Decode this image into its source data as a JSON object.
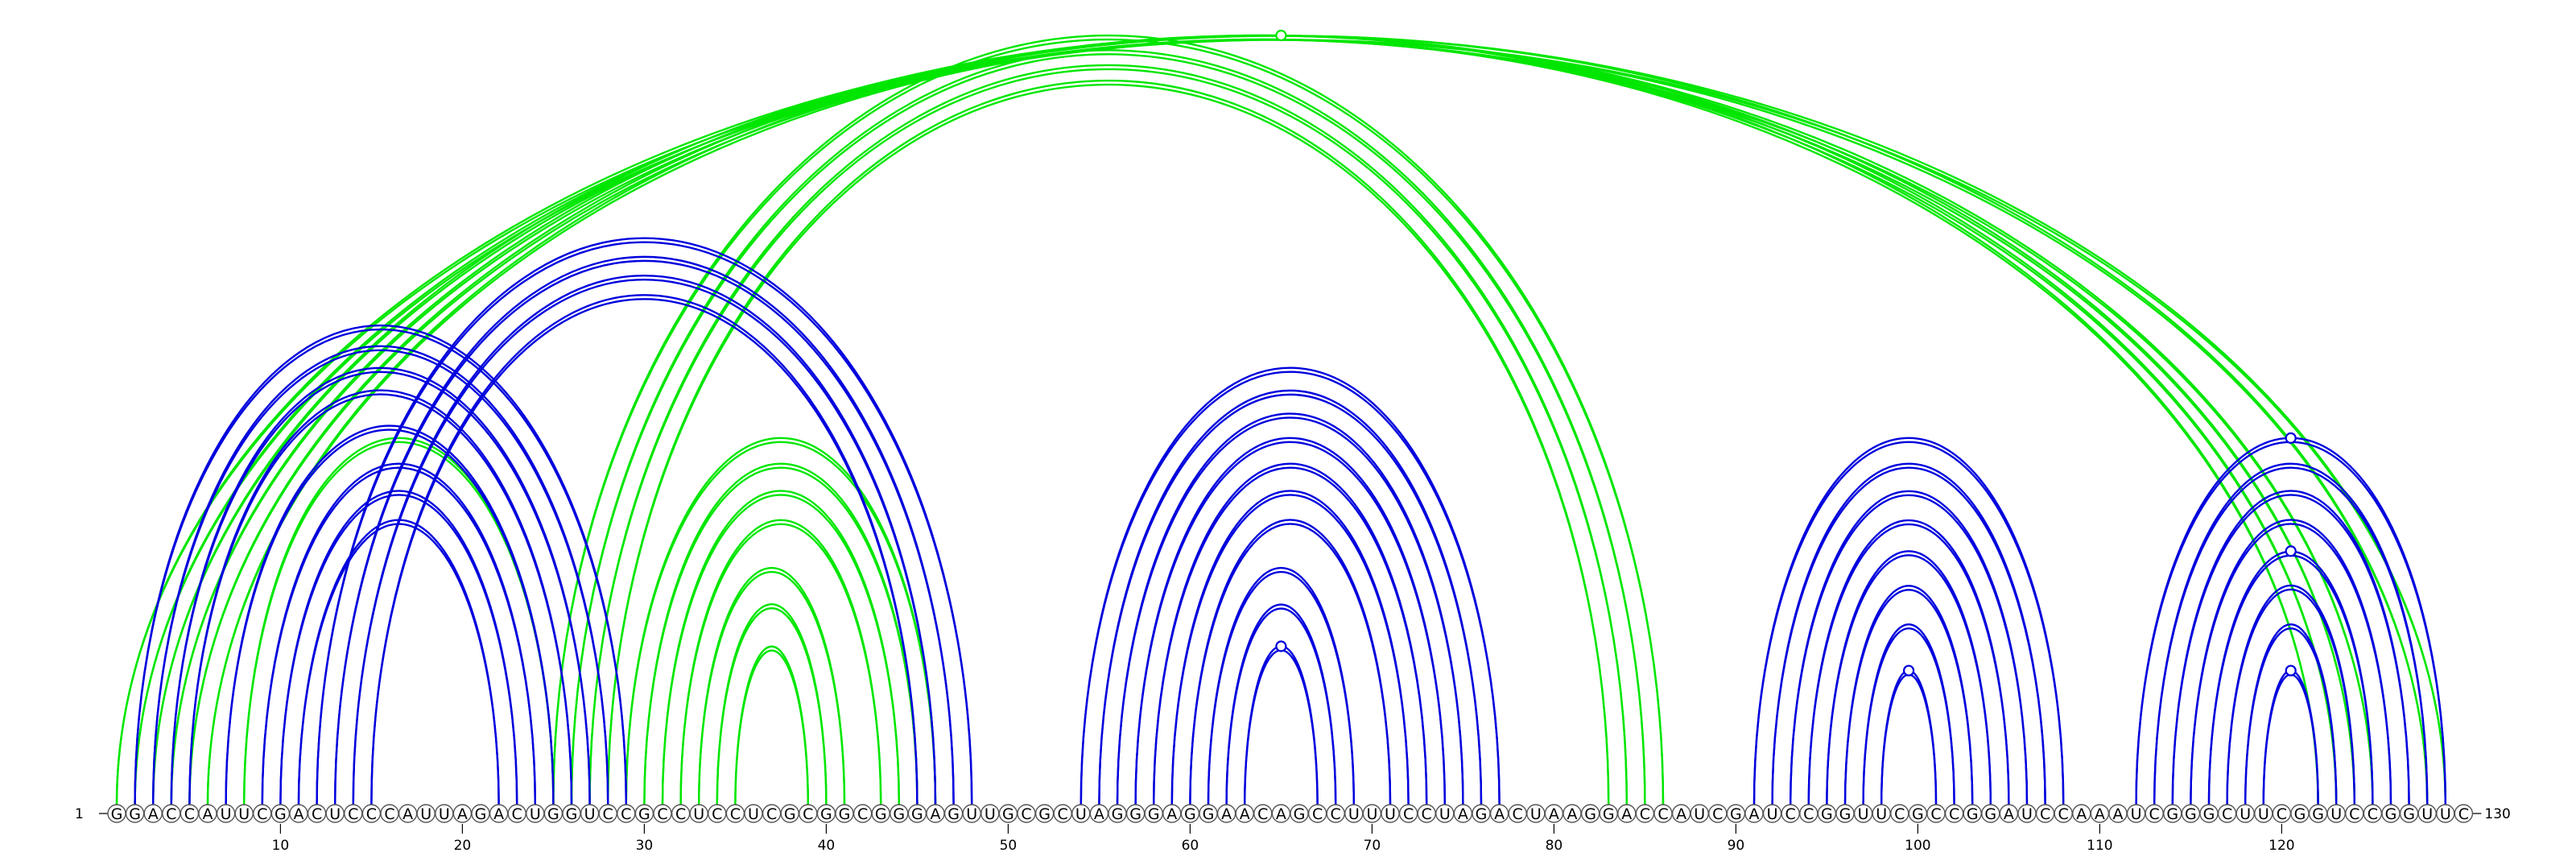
{
  "sequence": "GGACCAUUCGACUCCCAUUAGACUGGUCCGCCUCCUCGCGGCGGGAGUUGCGCUAGGGAGGAACAGCCUUUCCUAGACUAAGGACCAUCGAUCCGGUUCGCCGGAUCCAAAUCGGGCUUCGGUCCGGUUC",
  "start_label": "1",
  "end_label": "130",
  "tick_labels": [
    "10",
    "20",
    "30",
    "40",
    "50",
    "60",
    "70",
    "80",
    "90",
    "100",
    "110",
    "120"
  ],
  "colors": {
    "green": "#00e600",
    "blue": "#0000dd"
  },
  "arcs": [
    {
      "i": 1,
      "j": 129,
      "color": "green"
    },
    {
      "i": 2,
      "j": 128,
      "color": "green"
    },
    {
      "i": 3,
      "j": 125,
      "color": "green"
    },
    {
      "i": 4,
      "j": 124,
      "color": "green"
    },
    {
      "i": 5,
      "j": 123,
      "color": "green"
    },
    {
      "i": 6,
      "j": 122,
      "color": "green"
    },
    {
      "i": 25,
      "j": 86,
      "color": "green"
    },
    {
      "i": 26,
      "j": 85,
      "color": "green"
    },
    {
      "i": 27,
      "j": 84,
      "color": "green"
    },
    {
      "i": 28,
      "j": 83,
      "color": "green"
    },
    {
      "i": 29,
      "j": 46,
      "color": "green"
    },
    {
      "i": 30,
      "j": 45,
      "color": "green"
    },
    {
      "i": 31,
      "j": 44,
      "color": "green"
    },
    {
      "i": 32,
      "j": 43,
      "color": "green"
    },
    {
      "i": 33,
      "j": 41,
      "color": "green"
    },
    {
      "i": 34,
      "j": 40,
      "color": "green"
    },
    {
      "i": 35,
      "j": 39,
      "color": "green"
    },
    {
      "i": 8,
      "j": 25,
      "color": "green"
    },
    {
      "i": 2,
      "j": 29,
      "color": "blue"
    },
    {
      "i": 3,
      "j": 28,
      "color": "blue"
    },
    {
      "i": 4,
      "j": 27,
      "color": "blue"
    },
    {
      "i": 5,
      "j": 26,
      "color": "blue"
    },
    {
      "i": 7,
      "j": 25,
      "color": "blue"
    },
    {
      "i": 9,
      "j": 24,
      "color": "blue"
    },
    {
      "i": 10,
      "j": 23,
      "color": "blue"
    },
    {
      "i": 11,
      "j": 22,
      "color": "blue"
    },
    {
      "i": 12,
      "j": 48,
      "color": "blue"
    },
    {
      "i": 13,
      "j": 47,
      "color": "blue"
    },
    {
      "i": 14,
      "j": 46,
      "color": "blue"
    },
    {
      "i": 15,
      "j": 45,
      "color": "blue"
    },
    {
      "i": 54,
      "j": 77,
      "color": "blue"
    },
    {
      "i": 55,
      "j": 76,
      "color": "blue"
    },
    {
      "i": 56,
      "j": 75,
      "color": "blue"
    },
    {
      "i": 57,
      "j": 74,
      "color": "blue"
    },
    {
      "i": 58,
      "j": 73,
      "color": "blue"
    },
    {
      "i": 59,
      "j": 72,
      "color": "blue"
    },
    {
      "i": 60,
      "j": 71,
      "color": "blue"
    },
    {
      "i": 61,
      "j": 69,
      "color": "blue"
    },
    {
      "i": 62,
      "j": 68,
      "color": "blue"
    },
    {
      "i": 63,
      "j": 67,
      "color": "blue"
    },
    {
      "i": 91,
      "j": 108,
      "color": "blue"
    },
    {
      "i": 92,
      "j": 107,
      "color": "blue"
    },
    {
      "i": 93,
      "j": 106,
      "color": "blue"
    },
    {
      "i": 94,
      "j": 105,
      "color": "blue"
    },
    {
      "i": 95,
      "j": 104,
      "color": "blue"
    },
    {
      "i": 96,
      "j": 103,
      "color": "blue"
    },
    {
      "i": 97,
      "j": 102,
      "color": "blue"
    },
    {
      "i": 98,
      "j": 101,
      "color": "blue"
    },
    {
      "i": 112,
      "j": 129,
      "color": "blue"
    },
    {
      "i": 113,
      "j": 128,
      "color": "blue"
    },
    {
      "i": 114,
      "j": 127,
      "color": "blue"
    },
    {
      "i": 115,
      "j": 126,
      "color": "blue"
    },
    {
      "i": 116,
      "j": 125,
      "color": "blue"
    },
    {
      "i": 117,
      "j": 124,
      "color": "blue"
    },
    {
      "i": 118,
      "j": 123,
      "color": "blue"
    },
    {
      "i": 119,
      "j": 122,
      "color": "blue"
    }
  ],
  "markers": [
    {
      "i": 1,
      "j": 129,
      "color": "green"
    },
    {
      "i": 63,
      "j": 67,
      "color": "blue"
    },
    {
      "i": 98,
      "j": 101,
      "color": "blue"
    },
    {
      "i": 112,
      "j": 129,
      "color": "blue"
    },
    {
      "i": 116,
      "j": 125,
      "color": "blue"
    },
    {
      "i": 119,
      "j": 122,
      "color": "blue"
    }
  ]
}
